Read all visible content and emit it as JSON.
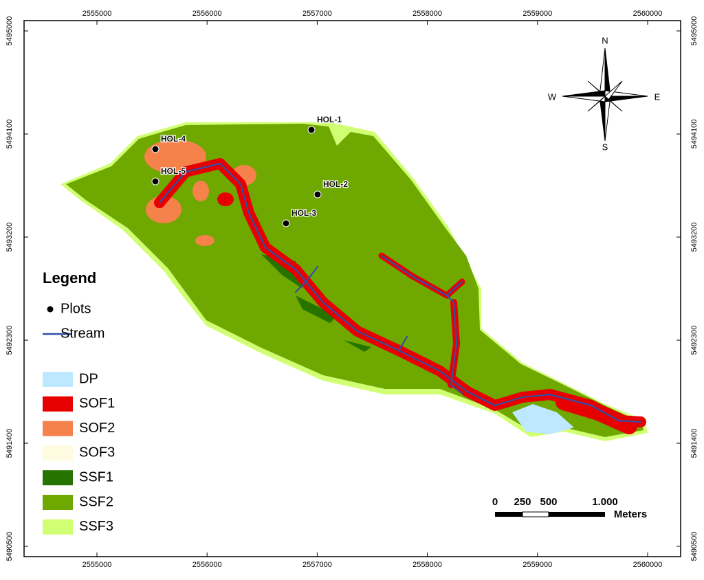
{
  "map": {
    "xticks": [
      2555000,
      2556000,
      2557000,
      2558000,
      2559000,
      2560000
    ],
    "yticks": [
      5490500,
      5491400,
      5492300,
      5493200,
      5494100,
      5495000
    ],
    "plots": [
      {
        "label": "HOL-1"
      },
      {
        "label": "HOL-2"
      },
      {
        "label": "HOL-3"
      },
      {
        "label": "HOL-4"
      },
      {
        "label": "HOL-5"
      }
    ],
    "legend": {
      "title": "Legend",
      "items": [
        {
          "label": "Plots"
        },
        {
          "label": "Stream"
        },
        {
          "label": "DP",
          "color": "#bee8ff"
        },
        {
          "label": "SOF1",
          "color": "#e60000"
        },
        {
          "label": "SOF2",
          "color": "#f5824a"
        },
        {
          "label": "SOF3",
          "color": "#fffbe0"
        },
        {
          "label": "SSF1",
          "color": "#267300"
        },
        {
          "label": "SSF2",
          "color": "#6ea800"
        },
        {
          "label": "SSF3",
          "color": "#d1ff73"
        }
      ]
    },
    "scale_bar": {
      "labels": [
        "0",
        "250",
        "500",
        "1.000"
      ],
      "unit": "Meters"
    },
    "compass": {
      "n": "N",
      "s": "S",
      "e": "E",
      "w": "W"
    }
  }
}
